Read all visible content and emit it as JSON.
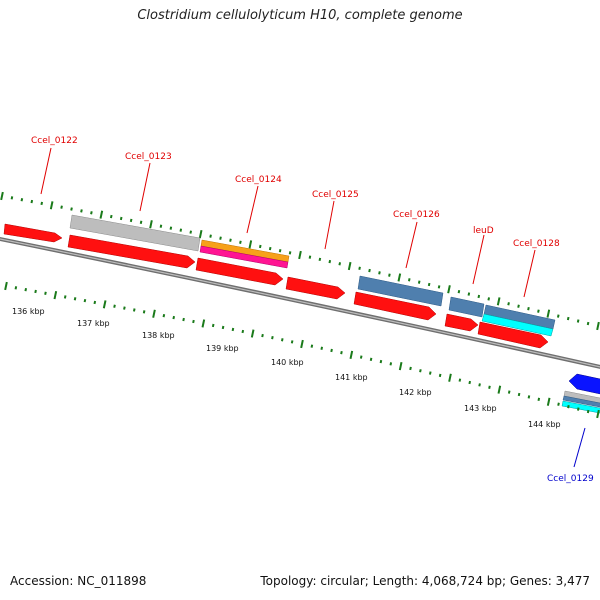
{
  "title": "Clostridium cellulolyticum H10, complete genome",
  "footer": {
    "accession": "Accession: NC_011898",
    "summary": "Topology: circular; Length: 4,068,724 bp; Genes: 3,477"
  },
  "colors": {
    "forward_cds": "#ff1010",
    "reverse_cds": "#0a14ff",
    "grey_feature": "#bdbdbd",
    "steelblue_feature": "#4f7fae",
    "orange_feature": "#f7a11a",
    "pink_feature": "#ff1493",
    "cyan_feature": "#00ffff",
    "tick_green": "#1a7a1a",
    "backbone": "#7a7a7a",
    "label_red": "#e00000",
    "label_blue": "#0000cc"
  },
  "gene_labels": [
    {
      "id": "Ccel_0122",
      "text": "Ccel_0122",
      "color": "red"
    },
    {
      "id": "Ccel_0123",
      "text": "Ccel_0123",
      "color": "red"
    },
    {
      "id": "Ccel_0124",
      "text": "Ccel_0124",
      "color": "red"
    },
    {
      "id": "Ccel_0125",
      "text": "Ccel_0125",
      "color": "red"
    },
    {
      "id": "Ccel_0126",
      "text": "Ccel_0126",
      "color": "red"
    },
    {
      "id": "leuD",
      "text": "leuD",
      "color": "red"
    },
    {
      "id": "Ccel_0128",
      "text": "Ccel_0128",
      "color": "red"
    },
    {
      "id": "Ccel_0129",
      "text": "Ccel_0129",
      "color": "blue"
    }
  ],
  "kbp_labels": [
    "136 kbp",
    "137 kbp",
    "138 kbp",
    "139 kbp",
    "140 kbp",
    "141 kbp",
    "142 kbp",
    "143 kbp",
    "144 kbp"
  ]
}
